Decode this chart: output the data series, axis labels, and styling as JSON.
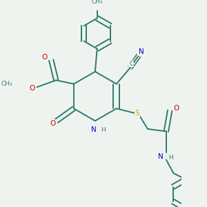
{
  "background_color": "#eff3ef",
  "bond_color": "#2d7a6e",
  "bond_width": 1.4,
  "figsize": [
    3.0,
    3.0
  ],
  "dpi": 100,
  "atom_colors": {
    "C": "#2d7a6e",
    "N": "#0000cc",
    "O": "#cc0000",
    "S": "#ccaa00",
    "H": "#2d7a6e"
  },
  "font_size": 7.5,
  "font_size_small": 6.5,
  "xlim": [
    -2.5,
    3.5
  ],
  "ylim": [
    -4.5,
    3.5
  ]
}
